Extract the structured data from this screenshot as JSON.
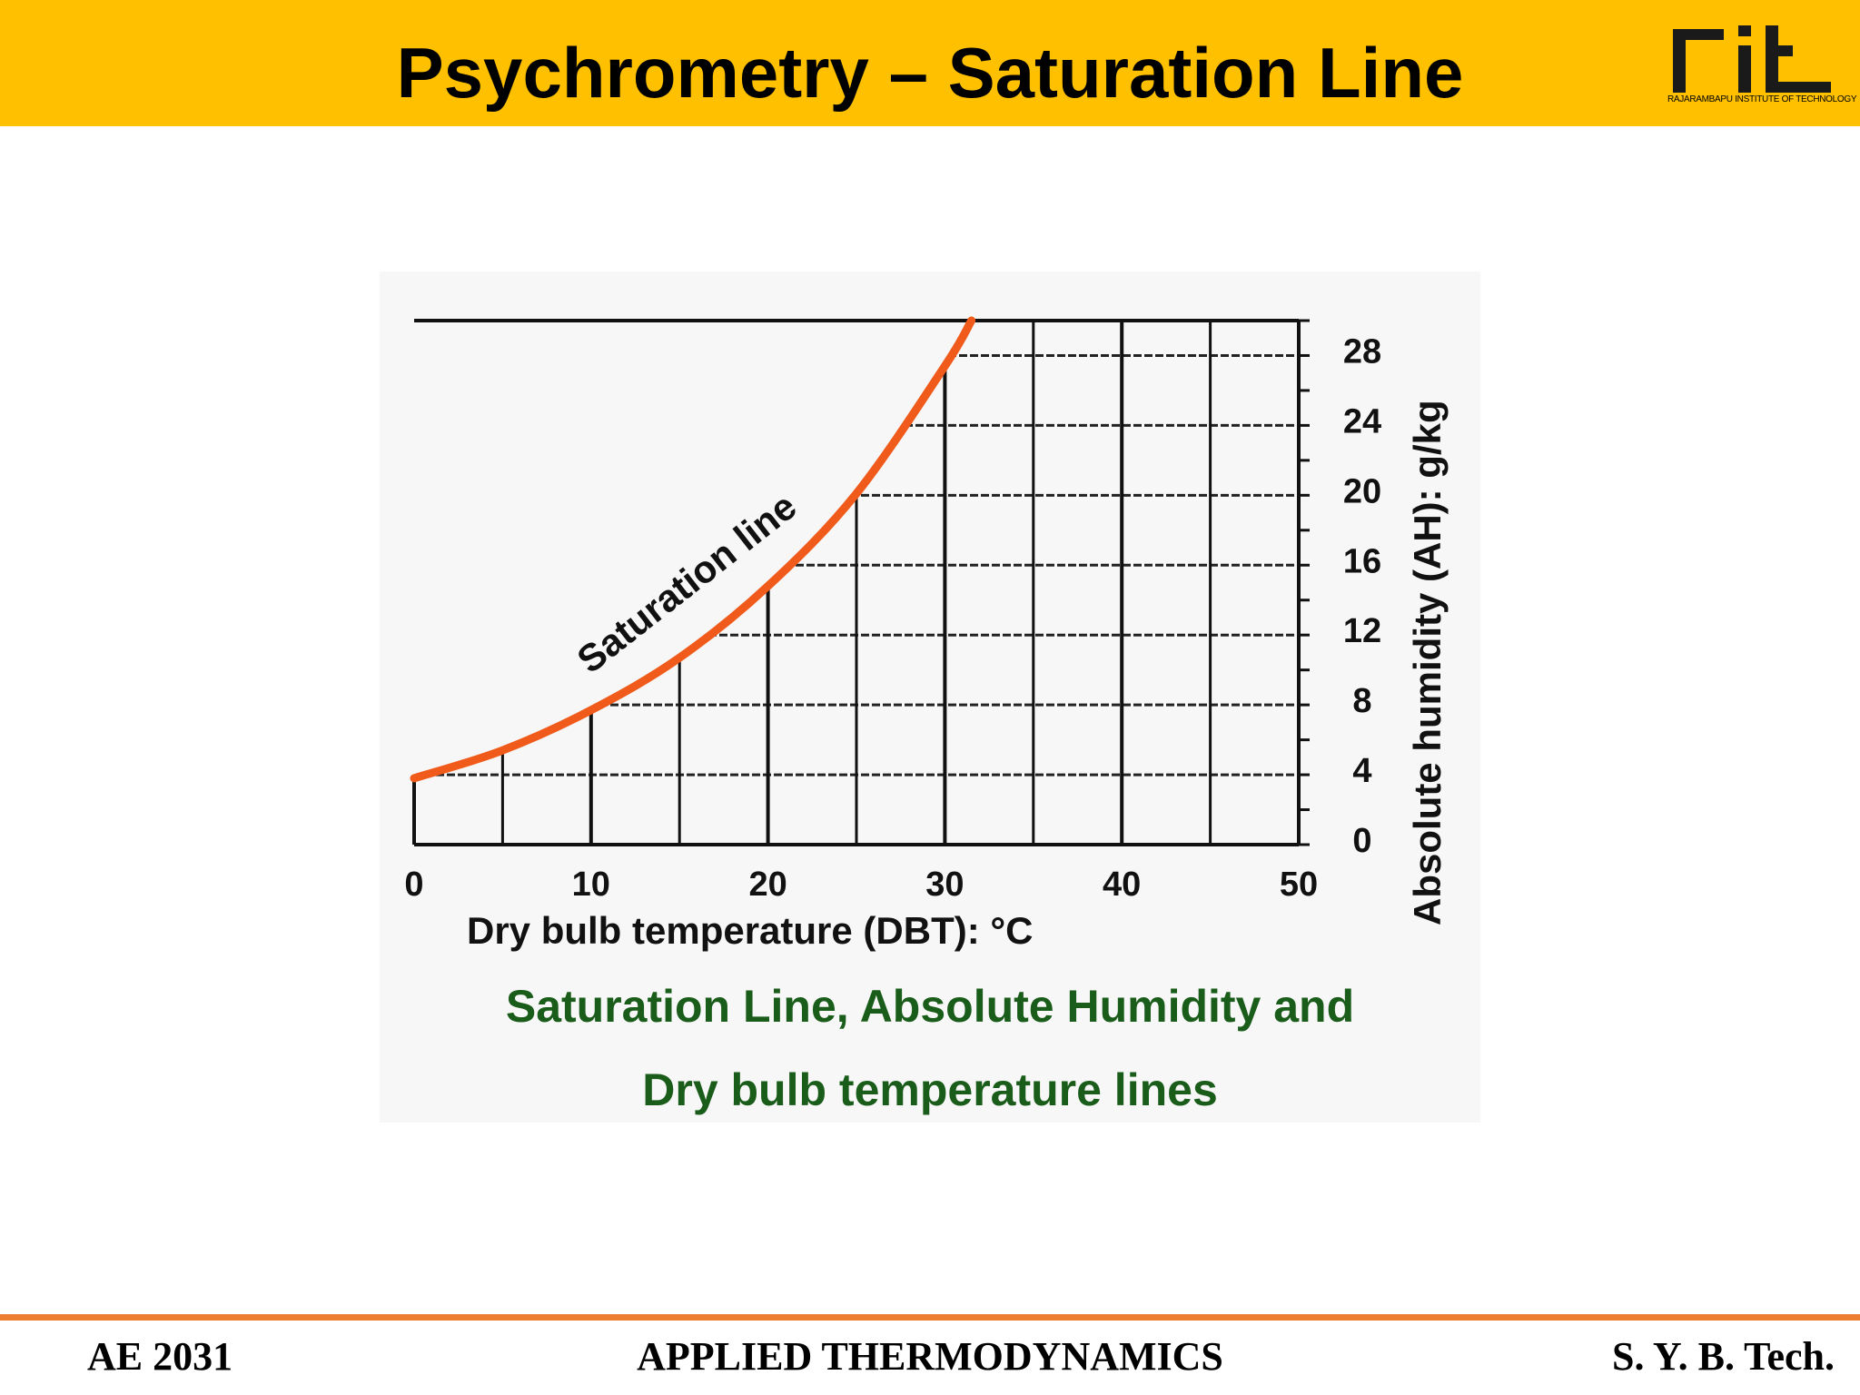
{
  "header": {
    "title": "Psychrometry – Saturation Line",
    "logo_text": "rit",
    "logo_subtitle": "RAJARAMBAPU INSTITUTE OF TECHNOLOGY"
  },
  "chart_data": {
    "type": "line",
    "xlabel": "Dry bulb temperature (DBT): °C",
    "ylabel": "Absolute humidity (AH): g/kg",
    "xlim": [
      0,
      50
    ],
    "ylim": [
      0,
      28
    ],
    "x_ticks": [
      "0",
      "10",
      "20",
      "30",
      "40",
      "50"
    ],
    "y_ticks": [
      "0",
      "4",
      "8",
      "12",
      "16",
      "20",
      "24",
      "28"
    ],
    "grid": true,
    "y_axis_side": "right",
    "series": [
      {
        "annotation": "Saturation line",
        "color": "#f05a1a",
        "x": [
          0,
          5,
          10,
          15,
          20,
          25,
          30,
          31.5
        ],
        "y": [
          3.8,
          5.4,
          7.7,
          10.7,
          14.8,
          20.1,
          27.4,
          30
        ]
      }
    ]
  },
  "caption": {
    "line1": "Saturation Line, Absolute Humidity and",
    "line2": "Dry bulb temperature lines"
  },
  "footer": {
    "left": "AE 2031",
    "center": "APPLIED THERMODYNAMICS",
    "right": "S. Y. B. Tech."
  }
}
